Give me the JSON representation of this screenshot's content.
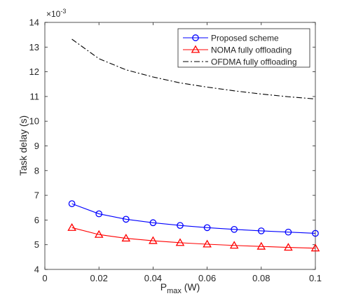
{
  "chart_data": {
    "type": "line",
    "title": "",
    "xlabel": "P",
    "xlabel_sub": "max",
    "xlabel_unit": "(W)",
    "ylabel": "Task delay (s)",
    "y_multiplier_base": "×10",
    "y_multiplier_exp": "-3",
    "xlim": [
      0,
      0.1
    ],
    "ylim": [
      4,
      14
    ],
    "xticks": [
      0,
      0.02,
      0.04,
      0.06,
      0.08,
      0.1
    ],
    "xtick_labels": [
      "0",
      "0.02",
      "0.04",
      "0.06",
      "0.08",
      "0.1"
    ],
    "yticks": [
      4,
      5,
      6,
      7,
      8,
      9,
      10,
      11,
      12,
      13,
      14
    ],
    "ytick_labels": [
      "4",
      "5",
      "6",
      "7",
      "8",
      "9",
      "10",
      "11",
      "12",
      "13",
      "14"
    ],
    "grid": false,
    "legend_position": "top-right",
    "x": [
      0.01,
      0.02,
      0.03,
      0.04,
      0.05,
      0.06,
      0.07,
      0.08,
      0.09,
      0.1
    ],
    "series": [
      {
        "name": "Proposed scheme",
        "color": "#0000ff",
        "marker": "circle",
        "line": "solid",
        "values": [
          6.66,
          6.25,
          6.03,
          5.89,
          5.78,
          5.69,
          5.62,
          5.56,
          5.51,
          5.46
        ]
      },
      {
        "name": "NOMA fully offloading",
        "color": "#ff0000",
        "marker": "triangle",
        "line": "solid",
        "values": [
          5.69,
          5.41,
          5.26,
          5.16,
          5.08,
          5.02,
          4.97,
          4.93,
          4.89,
          4.86
        ]
      },
      {
        "name": "OFDMA fully offloading",
        "color": "#000000",
        "marker": "none",
        "line": "dashdot",
        "values": [
          13.32,
          12.53,
          12.08,
          11.79,
          11.55,
          11.38,
          11.23,
          11.1,
          10.99,
          10.9
        ]
      }
    ]
  }
}
